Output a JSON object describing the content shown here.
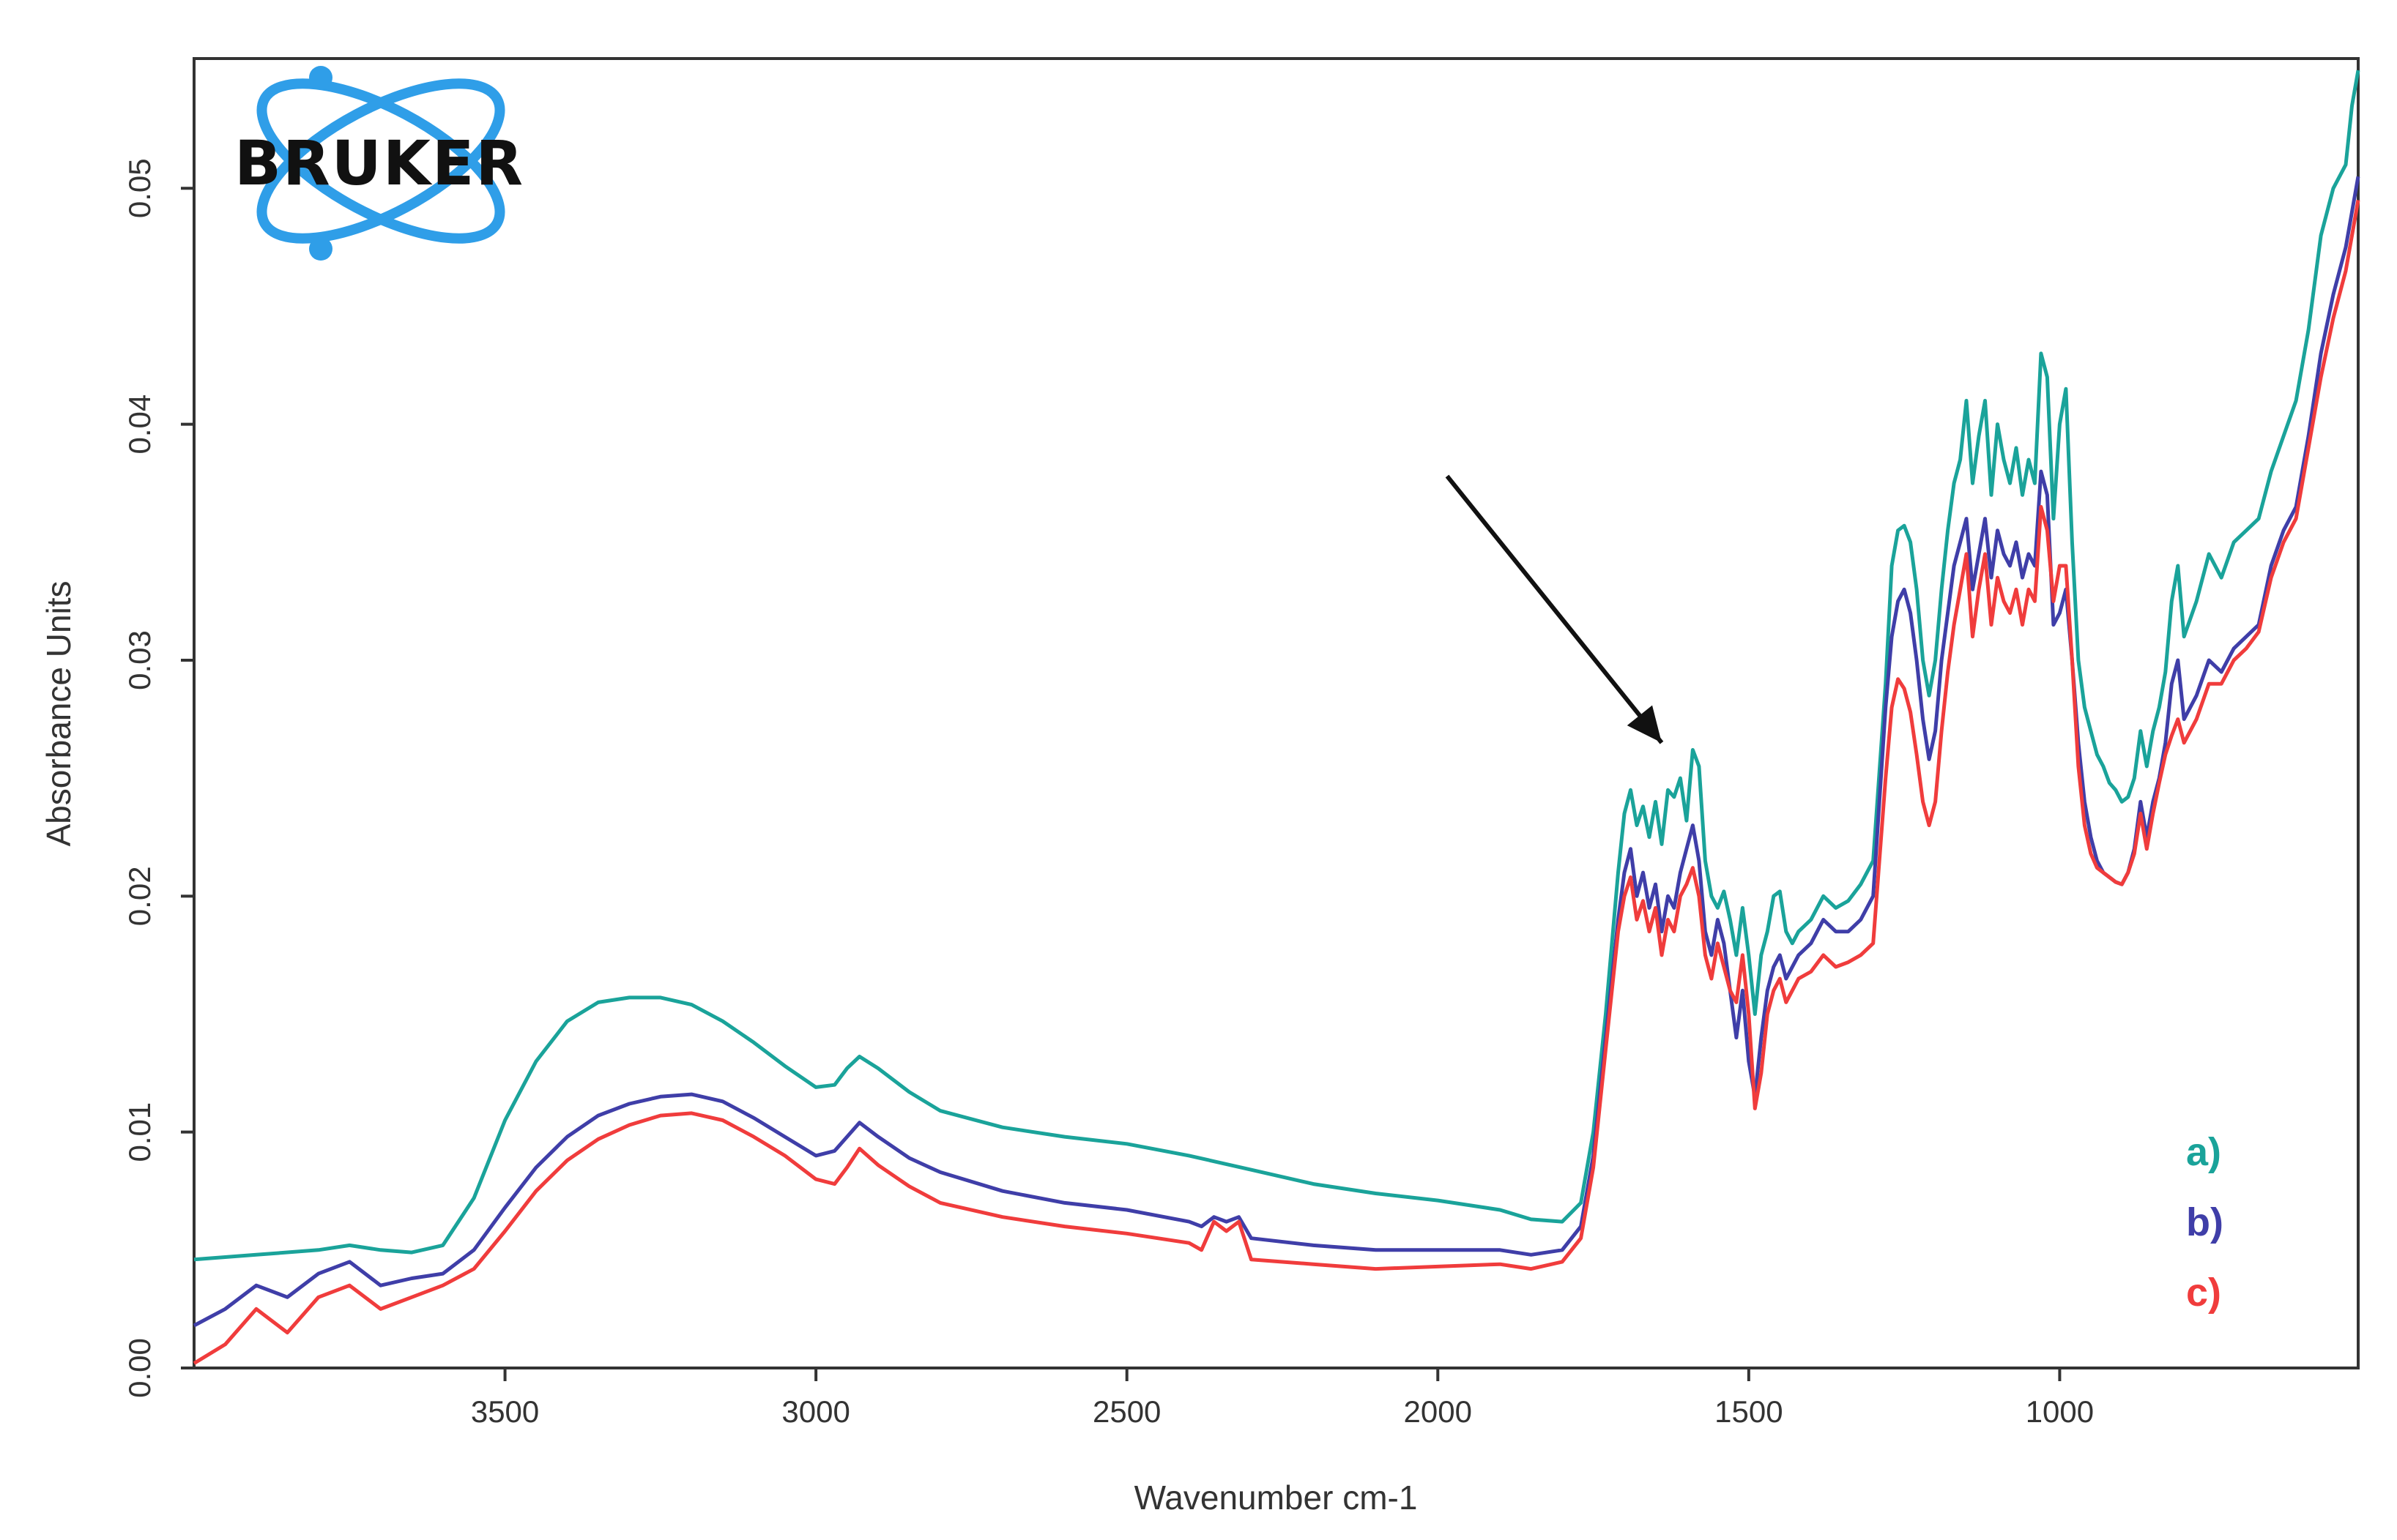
{
  "logo": {
    "text": "BRUKER",
    "color": "#2f9ee8"
  },
  "chart_data": {
    "type": "line",
    "xlabel": "Wavenumber cm-1",
    "ylabel": "Absorbance Units",
    "xlim": [
      4000,
      520
    ],
    "ylim": [
      0.0,
      0.0555
    ],
    "x_reversed": true,
    "grid": false,
    "legend_position": "bottom-right",
    "xticks": [
      {
        "value": 3500,
        "label": "3500"
      },
      {
        "value": 3000,
        "label": "3000"
      },
      {
        "value": 2500,
        "label": "2500"
      },
      {
        "value": 2000,
        "label": "2000"
      },
      {
        "value": 1500,
        "label": "1500"
      },
      {
        "value": 1000,
        "label": "1000"
      }
    ],
    "yticks": [
      {
        "value": 0.0,
        "label": "0.00"
      },
      {
        "value": 0.01,
        "label": "0.01"
      },
      {
        "value": 0.02,
        "label": "0.02"
      },
      {
        "value": 0.03,
        "label": "0.03"
      },
      {
        "value": 0.04,
        "label": "0.04"
      },
      {
        "value": 0.05,
        "label": "0.05"
      }
    ],
    "series": [
      {
        "name": "a)",
        "color": "#1aa39a",
        "x": [
          4000,
          3900,
          3800,
          3750,
          3700,
          3650,
          3600,
          3550,
          3500,
          3450,
          3400,
          3350,
          3300,
          3250,
          3200,
          3150,
          3100,
          3050,
          3000,
          2970,
          2950,
          2930,
          2900,
          2850,
          2800,
          2700,
          2600,
          2500,
          2400,
          2300,
          2200,
          2100,
          2000,
          1900,
          1850,
          1800,
          1770,
          1750,
          1730,
          1710,
          1700,
          1690,
          1680,
          1670,
          1660,
          1650,
          1640,
          1630,
          1620,
          1610,
          1600,
          1590,
          1580,
          1570,
          1560,
          1550,
          1540,
          1530,
          1520,
          1510,
          1500,
          1490,
          1480,
          1470,
          1460,
          1450,
          1440,
          1430,
          1420,
          1400,
          1380,
          1360,
          1340,
          1320,
          1300,
          1280,
          1270,
          1260,
          1250,
          1240,
          1230,
          1220,
          1210,
          1200,
          1190,
          1180,
          1170,
          1160,
          1150,
          1140,
          1130,
          1120,
          1110,
          1100,
          1090,
          1080,
          1070,
          1060,
          1050,
          1040,
          1030,
          1020,
          1010,
          1000,
          990,
          980,
          970,
          960,
          950,
          940,
          930,
          920,
          910,
          900,
          890,
          880,
          870,
          860,
          850,
          840,
          830,
          820,
          810,
          800,
          780,
          760,
          740,
          720,
          700,
          680,
          660,
          640,
          620,
          600,
          580,
          560,
          540,
          530,
          520
        ],
        "values": [
          0.0046,
          0.0048,
          0.005,
          0.0052,
          0.005,
          0.0049,
          0.0052,
          0.0072,
          0.0105,
          0.013,
          0.0147,
          0.0155,
          0.0157,
          0.0157,
          0.0154,
          0.0147,
          0.0138,
          0.0128,
          0.0119,
          0.012,
          0.0127,
          0.0132,
          0.0127,
          0.0117,
          0.0109,
          0.0102,
          0.0098,
          0.0095,
          0.009,
          0.0084,
          0.0078,
          0.0074,
          0.0071,
          0.0067,
          0.0063,
          0.0062,
          0.007,
          0.01,
          0.015,
          0.021,
          0.0235,
          0.0245,
          0.023,
          0.0238,
          0.0225,
          0.024,
          0.0222,
          0.0245,
          0.0242,
          0.025,
          0.0232,
          0.0262,
          0.0255,
          0.0215,
          0.02,
          0.0195,
          0.0202,
          0.019,
          0.0175,
          0.0195,
          0.0175,
          0.015,
          0.0175,
          0.0185,
          0.02,
          0.0202,
          0.0185,
          0.018,
          0.0185,
          0.019,
          0.02,
          0.0195,
          0.0198,
          0.0205,
          0.0215,
          0.029,
          0.034,
          0.0355,
          0.0357,
          0.035,
          0.033,
          0.03,
          0.0285,
          0.03,
          0.033,
          0.0355,
          0.0375,
          0.0385,
          0.041,
          0.0375,
          0.0395,
          0.041,
          0.037,
          0.04,
          0.0385,
          0.0375,
          0.039,
          0.037,
          0.0385,
          0.0375,
          0.043,
          0.042,
          0.036,
          0.04,
          0.0415,
          0.035,
          0.03,
          0.028,
          0.027,
          0.026,
          0.0255,
          0.0248,
          0.0245,
          0.024,
          0.0242,
          0.025,
          0.027,
          0.0255,
          0.027,
          0.028,
          0.0295,
          0.0325,
          0.034,
          0.031,
          0.0325,
          0.0345,
          0.0335,
          0.035,
          0.0355,
          0.036,
          0.038,
          0.0395,
          0.041,
          0.044,
          0.048,
          0.05,
          0.051,
          0.0535,
          0.055
        ]
      },
      {
        "name": "b)",
        "color": "#3f3ea8",
        "x": [
          4000,
          3950,
          3900,
          3850,
          3800,
          3750,
          3700,
          3650,
          3600,
          3550,
          3500,
          3450,
          3400,
          3350,
          3300,
          3250,
          3200,
          3150,
          3100,
          3050,
          3000,
          2970,
          2950,
          2930,
          2900,
          2850,
          2800,
          2700,
          2600,
          2500,
          2400,
          2380,
          2360,
          2340,
          2320,
          2300,
          2200,
          2100,
          2000,
          1900,
          1850,
          1800,
          1770,
          1750,
          1730,
          1710,
          1700,
          1690,
          1680,
          1670,
          1660,
          1650,
          1640,
          1630,
          1620,
          1610,
          1600,
          1590,
          1580,
          1570,
          1560,
          1550,
          1540,
          1530,
          1520,
          1510,
          1500,
          1490,
          1480,
          1470,
          1460,
          1450,
          1440,
          1430,
          1420,
          1400,
          1380,
          1360,
          1340,
          1320,
          1300,
          1280,
          1270,
          1260,
          1250,
          1240,
          1230,
          1220,
          1210,
          1200,
          1190,
          1180,
          1170,
          1160,
          1150,
          1140,
          1130,
          1120,
          1110,
          1100,
          1090,
          1080,
          1070,
          1060,
          1050,
          1040,
          1030,
          1020,
          1010,
          1000,
          990,
          980,
          970,
          960,
          950,
          940,
          930,
          920,
          910,
          900,
          890,
          880,
          870,
          860,
          850,
          840,
          830,
          820,
          810,
          800,
          780,
          760,
          740,
          720,
          700,
          680,
          660,
          640,
          620,
          600,
          580,
          560,
          540,
          530,
          520
        ],
        "values": [
          0.0018,
          0.0025,
          0.0035,
          0.003,
          0.004,
          0.0045,
          0.0035,
          0.0038,
          0.004,
          0.005,
          0.0068,
          0.0085,
          0.0098,
          0.0107,
          0.0112,
          0.0115,
          0.0116,
          0.0113,
          0.0106,
          0.0098,
          0.009,
          0.0092,
          0.0098,
          0.0104,
          0.0098,
          0.0089,
          0.0083,
          0.0075,
          0.007,
          0.0067,
          0.0062,
          0.006,
          0.0064,
          0.0062,
          0.0064,
          0.0055,
          0.0052,
          0.005,
          0.005,
          0.005,
          0.0048,
          0.005,
          0.006,
          0.009,
          0.014,
          0.019,
          0.021,
          0.022,
          0.02,
          0.021,
          0.0195,
          0.0205,
          0.0185,
          0.02,
          0.0195,
          0.021,
          0.022,
          0.023,
          0.0215,
          0.0185,
          0.0175,
          0.019,
          0.018,
          0.016,
          0.014,
          0.016,
          0.013,
          0.0115,
          0.014,
          0.016,
          0.017,
          0.0175,
          0.0165,
          0.017,
          0.0175,
          0.018,
          0.019,
          0.0185,
          0.0185,
          0.019,
          0.02,
          0.028,
          0.031,
          0.0325,
          0.033,
          0.032,
          0.03,
          0.0275,
          0.0258,
          0.027,
          0.03,
          0.032,
          0.034,
          0.035,
          0.036,
          0.033,
          0.0345,
          0.036,
          0.0335,
          0.0355,
          0.0345,
          0.034,
          0.035,
          0.0335,
          0.0345,
          0.034,
          0.038,
          0.037,
          0.0315,
          0.032,
          0.033,
          0.03,
          0.0265,
          0.024,
          0.0225,
          0.0215,
          0.021,
          0.0208,
          0.0206,
          0.0205,
          0.021,
          0.022,
          0.024,
          0.0225,
          0.024,
          0.025,
          0.0265,
          0.029,
          0.03,
          0.0275,
          0.0285,
          0.03,
          0.0295,
          0.0305,
          0.031,
          0.0315,
          0.034,
          0.0355,
          0.0365,
          0.0395,
          0.043,
          0.0455,
          0.0475,
          0.049,
          0.0505
        ]
      },
      {
        "name": "c)",
        "color": "#f03c3c",
        "x": [
          4000,
          3950,
          3900,
          3850,
          3800,
          3750,
          3700,
          3650,
          3600,
          3550,
          3500,
          3450,
          3400,
          3350,
          3300,
          3250,
          3200,
          3150,
          3100,
          3050,
          3000,
          2970,
          2950,
          2930,
          2900,
          2850,
          2800,
          2700,
          2600,
          2500,
          2400,
          2380,
          2360,
          2340,
          2320,
          2300,
          2200,
          2100,
          2000,
          1900,
          1850,
          1800,
          1770,
          1750,
          1730,
          1710,
          1700,
          1690,
          1680,
          1670,
          1660,
          1650,
          1640,
          1630,
          1620,
          1610,
          1600,
          1590,
          1580,
          1570,
          1560,
          1550,
          1540,
          1530,
          1520,
          1510,
          1500,
          1490,
          1480,
          1470,
          1460,
          1450,
          1440,
          1430,
          1420,
          1400,
          1380,
          1360,
          1340,
          1320,
          1300,
          1280,
          1270,
          1260,
          1250,
          1240,
          1230,
          1220,
          1210,
          1200,
          1190,
          1180,
          1170,
          1160,
          1150,
          1140,
          1130,
          1120,
          1110,
          1100,
          1090,
          1080,
          1070,
          1060,
          1050,
          1040,
          1030,
          1020,
          1010,
          1000,
          990,
          980,
          970,
          960,
          950,
          940,
          930,
          920,
          910,
          900,
          890,
          880,
          870,
          860,
          850,
          840,
          830,
          820,
          810,
          800,
          780,
          760,
          740,
          720,
          700,
          680,
          660,
          640,
          620,
          600,
          580,
          560,
          540,
          530,
          520
        ],
        "values": [
          0.0002,
          0.001,
          0.0025,
          0.0015,
          0.003,
          0.0035,
          0.0025,
          0.003,
          0.0035,
          0.0042,
          0.0058,
          0.0075,
          0.0088,
          0.0097,
          0.0103,
          0.0107,
          0.0108,
          0.0105,
          0.0098,
          0.009,
          0.008,
          0.0078,
          0.0085,
          0.0093,
          0.0086,
          0.0077,
          0.007,
          0.0064,
          0.006,
          0.0057,
          0.0053,
          0.005,
          0.0062,
          0.0058,
          0.0062,
          0.0046,
          0.0044,
          0.0042,
          0.0043,
          0.0044,
          0.0042,
          0.0045,
          0.0055,
          0.0085,
          0.0135,
          0.0185,
          0.02,
          0.0208,
          0.019,
          0.0198,
          0.0185,
          0.0195,
          0.0175,
          0.019,
          0.0185,
          0.02,
          0.0205,
          0.0212,
          0.02,
          0.0175,
          0.0165,
          0.018,
          0.017,
          0.016,
          0.0155,
          0.0175,
          0.015,
          0.011,
          0.0125,
          0.015,
          0.016,
          0.0165,
          0.0155,
          0.016,
          0.0165,
          0.0168,
          0.0175,
          0.017,
          0.0172,
          0.0175,
          0.018,
          0.025,
          0.028,
          0.0292,
          0.0288,
          0.0278,
          0.026,
          0.024,
          0.023,
          0.024,
          0.027,
          0.0295,
          0.0315,
          0.033,
          0.0345,
          0.031,
          0.033,
          0.0345,
          0.0315,
          0.0335,
          0.0325,
          0.032,
          0.033,
          0.0315,
          0.033,
          0.0325,
          0.0365,
          0.0355,
          0.0325,
          0.034,
          0.034,
          0.03,
          0.0255,
          0.023,
          0.0218,
          0.0212,
          0.021,
          0.0208,
          0.0206,
          0.0205,
          0.021,
          0.0218,
          0.0235,
          0.022,
          0.0235,
          0.0248,
          0.026,
          0.0268,
          0.0275,
          0.0265,
          0.0275,
          0.029,
          0.029,
          0.03,
          0.0305,
          0.0312,
          0.0335,
          0.035,
          0.036,
          0.039,
          0.042,
          0.0445,
          0.0465,
          0.048,
          0.0495
        ]
      }
    ],
    "annotations": [
      {
        "type": "arrow",
        "from": [
          1985,
          0.0378
        ],
        "to": [
          1640,
          0.0265
        ],
        "color": "#111111"
      }
    ]
  }
}
